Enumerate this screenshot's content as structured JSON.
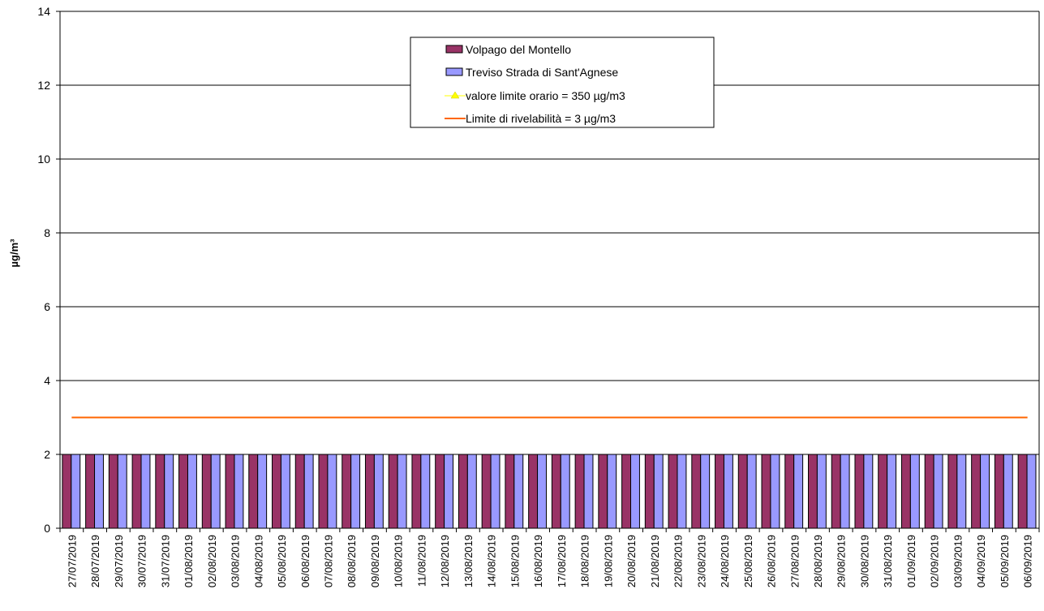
{
  "chart_data": {
    "type": "bar",
    "title": "",
    "xlabel": "",
    "ylabel": "µg/m³",
    "ylim": [
      0,
      14
    ],
    "yticks": [
      0,
      2,
      4,
      6,
      8,
      10,
      12,
      14
    ],
    "grid": "horizontal",
    "legend_position": "top-center",
    "categories": [
      "27/07/2019",
      "28/07/2019",
      "29/07/2019",
      "30/07/2019",
      "31/07/2019",
      "01/08/2019",
      "02/08/2019",
      "03/08/2019",
      "04/08/2019",
      "05/08/2019",
      "06/08/2019",
      "07/08/2019",
      "08/08/2019",
      "09/08/2019",
      "10/08/2019",
      "11/08/2019",
      "12/08/2019",
      "13/08/2019",
      "14/08/2019",
      "15/08/2019",
      "16/08/2019",
      "17/08/2019",
      "18/08/2019",
      "19/08/2019",
      "20/08/2019",
      "21/08/2019",
      "22/08/2019",
      "23/08/2019",
      "24/08/2019",
      "25/08/2019",
      "26/08/2019",
      "27/08/2019",
      "28/08/2019",
      "29/08/2019",
      "30/08/2019",
      "31/08/2019",
      "01/09/2019",
      "02/09/2019",
      "03/09/2019",
      "04/09/2019",
      "05/09/2019",
      "06/09/2019"
    ],
    "series": [
      {
        "name": "Volpago del Montello",
        "kind": "bar",
        "color": "#993366",
        "values": [
          2,
          2,
          2,
          2,
          2,
          2,
          2,
          2,
          2,
          2,
          2,
          2,
          2,
          2,
          2,
          2,
          2,
          2,
          2,
          2,
          2,
          2,
          2,
          2,
          2,
          2,
          2,
          2,
          2,
          2,
          2,
          2,
          2,
          2,
          2,
          2,
          2,
          2,
          2,
          2,
          2,
          2
        ]
      },
      {
        "name": "Treviso Strada di Sant'Agnese",
        "kind": "bar",
        "color": "#9999ff",
        "values": [
          2,
          2,
          2,
          2,
          2,
          2,
          2,
          2,
          2,
          2,
          2,
          2,
          2,
          2,
          2,
          2,
          2,
          2,
          2,
          2,
          2,
          2,
          2,
          2,
          2,
          2,
          2,
          2,
          2,
          2,
          2,
          2,
          2,
          2,
          2,
          2,
          2,
          2,
          2,
          2,
          2,
          2
        ]
      },
      {
        "name": "valore limite orario = 350 µg/m3",
        "kind": "line",
        "color": "#ffff00",
        "marker": "triangle",
        "value": 350
      },
      {
        "name": "Limite di rivelabilità = 3 µg/m3",
        "kind": "line",
        "color": "#ff6600",
        "value": 3
      }
    ]
  }
}
